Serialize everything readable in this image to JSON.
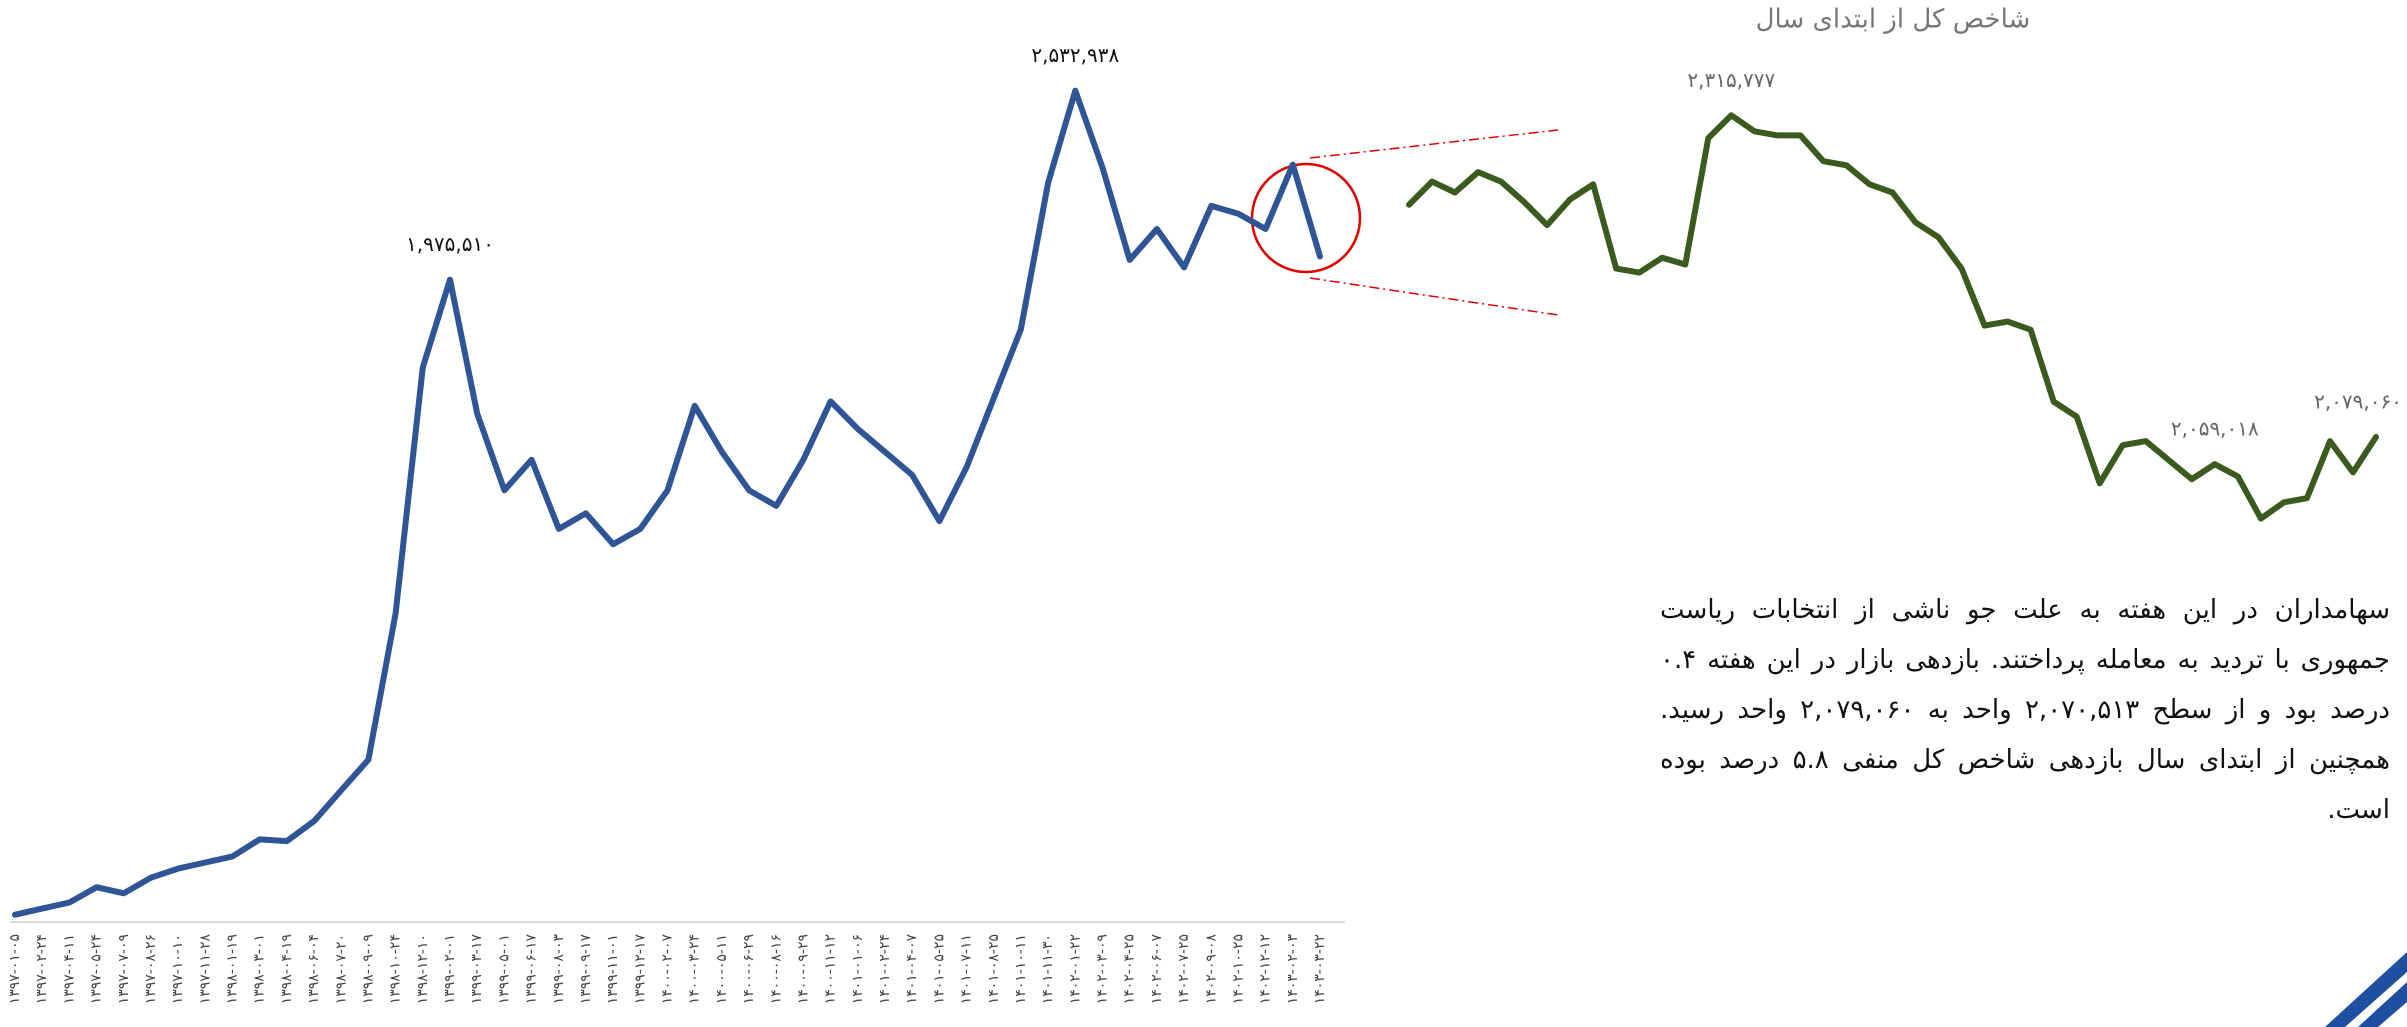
{
  "chart_data": [
    {
      "type": "line",
      "color": "#2f5597",
      "categories": [
        "۱۳۹۷-۰۱-۰۵",
        "۱۳۹۷-۰۲-۲۴",
        "۱۳۹۷-۰۴-۱۱",
        "۱۳۹۷-۰۵-۲۴",
        "۱۳۹۷-۰۷-۰۹",
        "۱۳۹۷-۰۸-۲۶",
        "۱۳۹۷-۱۰-۱۰",
        "۱۳۹۷-۱۱-۲۸",
        "۱۳۹۸-۰۱-۱۹",
        "۱۳۹۸-۰۳-۰۱",
        "۱۳۹۸-۰۴-۱۹",
        "۱۳۹۸-۰۶-۰۴",
        "۱۳۹۸-۰۷-۲۰",
        "۱۳۹۸-۰۹-۰۹",
        "۱۳۹۸-۱۰-۲۴",
        "۱۳۹۸-۱۲-۱۰",
        "۱۳۹۹-۰۲-۰۱",
        "۱۳۹۹-۰۳-۱۷",
        "۱۳۹۹-۰۵-۰۱",
        "۱۳۹۹-۰۶-۱۷",
        "۱۳۹۹-۰۸-۰۳",
        "۱۳۹۹-۰۹-۱۷",
        "۱۳۹۹-۱۱-۰۱",
        "۱۳۹۹-۱۲-۱۷",
        "۱۴۰۰-۰۲-۰۷",
        "۱۴۰۰-۰۳-۲۴",
        "۱۴۰۰-۰۵-۱۱",
        "۱۴۰۰-۰۶-۲۹",
        "۱۴۰۰-۰۸-۱۶",
        "۱۴۰۰-۰۹-۲۹",
        "۱۴۰۰-۱۱-۱۲",
        "۱۴۰۱-۰۱-۰۶",
        "۱۴۰۱-۰۲-۲۴",
        "۱۴۰۱-۰۴-۰۷",
        "۱۴۰۱-۰۵-۲۵",
        "۱۴۰۱-۰۷-۱۱",
        "۱۴۰۱-۰۸-۲۵",
        "۱۴۰۱-۱۰-۱۱",
        "۱۴۰۱-۱۱-۳۰",
        "۱۴۰۲-۰۱-۲۲",
        "۱۴۰۲-۰۳-۰۹",
        "۱۴۰۲-۰۴-۲۵",
        "۱۴۰۲-۰۶-۰۷",
        "۱۴۰۲-۰۷-۲۵",
        "۱۴۰۲-۰۹-۰۸",
        "۱۴۰۲-۱۰-۲۵",
        "۱۴۰۲-۱۲-۱۲",
        "۱۴۰۳-۰۲-۰۳",
        "۱۴۰۳-۰۳-۲۲"
      ],
      "values": [
        104000,
        122000,
        140000,
        185000,
        167000,
        213000,
        240000,
        258000,
        276000,
        326000,
        321000,
        380000,
        471000,
        561000,
        992000,
        1717000,
        1975510,
        1581000,
        1355000,
        1445000,
        1241000,
        1287000,
        1196000,
        1241000,
        1355000,
        1604000,
        1468000,
        1355000,
        1309000,
        1445000,
        1617000,
        1536000,
        1468000,
        1400000,
        1264000,
        1423000,
        1627000,
        1830000,
        2261000,
        2532938,
        2306000,
        2034000,
        2125000,
        2012000,
        2193000,
        2170000,
        2125000,
        2315000,
        2044000
      ],
      "value_labels": [
        null,
        null,
        null,
        null,
        null,
        null,
        null,
        null,
        null,
        null,
        null,
        null,
        null,
        null,
        null,
        null,
        "۱,۹۷۵,۵۱۰",
        null,
        null,
        null,
        null,
        null,
        null,
        null,
        null,
        null,
        null,
        null,
        null,
        null,
        null,
        null,
        null,
        null,
        null,
        null,
        null,
        null,
        null,
        "۲,۵۳۲,۹۳۸",
        null,
        null,
        null,
        null,
        null,
        null,
        null,
        null,
        null
      ],
      "ylim": [
        0,
        2800000
      ]
    },
    {
      "type": "line",
      "title": "شاخص کل از ابتدای سال",
      "color": "#3b5a1e",
      "values": [
        2250000,
        2267000,
        2259000,
        2274000,
        2267000,
        2252000,
        2235000,
        2254000,
        2265000,
        2203000,
        2200000,
        2211000,
        2206000,
        2299000,
        2315777,
        2304000,
        2301000,
        2301000,
        2282000,
        2279000,
        2265000,
        2259000,
        2237000,
        2226000,
        2203000,
        2161000,
        2164000,
        2158000,
        2105000,
        2094000,
        2045000,
        2073000,
        2076000,
        2062000,
        2048000,
        2059018,
        2050000,
        2019000,
        2031000,
        2034000,
        2076000,
        2053000,
        2079060
      ],
      "value_labels": [
        null,
        null,
        null,
        null,
        null,
        null,
        null,
        null,
        null,
        null,
        null,
        null,
        null,
        null,
        "۲,۳۱۵,۷۷۷",
        null,
        null,
        null,
        null,
        null,
        null,
        null,
        null,
        null,
        null,
        null,
        null,
        null,
        null,
        null,
        null,
        null,
        null,
        null,
        null,
        "۲,۰۵۹,۰۱۸",
        null,
        null,
        null,
        null,
        null,
        null,
        "۲,۰۷۹,۰۶۰"
      ],
      "ylim": [
        1990000,
        2330000
      ]
    }
  ],
  "description": "سهامداران در این هفته به علت جو ناشی از انتخابات ریاست جمهوری با تردید به معامله پرداختند. بازدهی بازار در این هفته ۰.۴ درصد بود و از سطح ۲,۰۷۰,۵۱۳ واحد به ۲,۰۷۹,۰۶۰ واحد رسید. همچنین از ابتدای سال بازدهی شاخص کل منفی ۵.۸ درصد بوده است."
}
